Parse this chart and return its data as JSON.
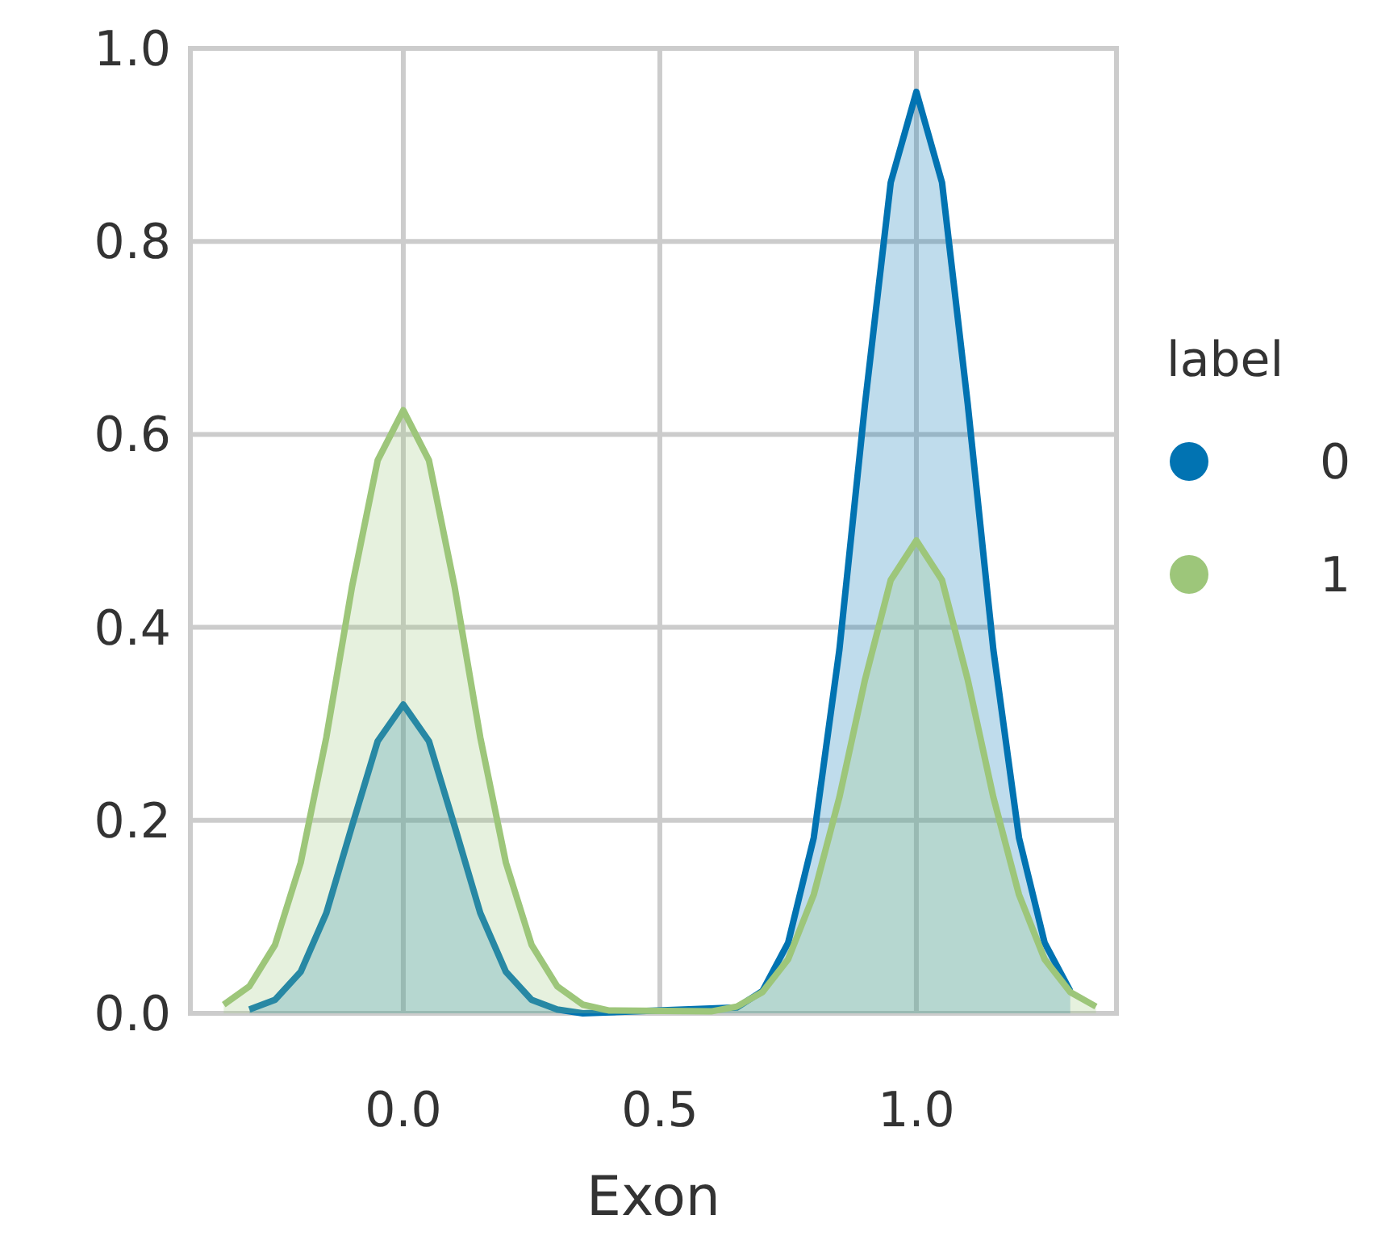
{
  "chart_data": {
    "type": "area",
    "xlabel": "Exon",
    "legend_title": "label",
    "xlim": [
      -0.415,
      1.39
    ],
    "xticks": [
      {
        "value": 0,
        "label": "0.0"
      },
      0.5,
      {
        "value": 1,
        "label": "1.0"
      }
    ],
    "ylim": [
      0,
      1
    ],
    "yticks": [
      {
        "value": 0,
        "label": "0.0"
      },
      0.2,
      0.4,
      0.6,
      0.8,
      {
        "value": 1,
        "label": "1.0"
      }
    ],
    "grid": true,
    "legend": "right",
    "line_style": "solid",
    "marker": "none",
    "series": [
      {
        "name": "0",
        "color": "#0173b2",
        "x": [
          -0.3,
          -0.25,
          -0.2,
          -0.15,
          -0.1,
          -0.05,
          0,
          0.05,
          0.1,
          0.15,
          0.2,
          0.25,
          0.3,
          0.35,
          0.65,
          0.7,
          0.75,
          0.8,
          0.85,
          0.9,
          0.95,
          1,
          1.05,
          1.1,
          1.15,
          1.2,
          1.25,
          1.3
        ],
        "values": [
          0.004,
          0.014,
          0.043,
          0.104,
          0.194,
          0.282,
          0.32,
          0.282,
          0.194,
          0.104,
          0.043,
          0.014,
          0.004,
          0,
          0.006,
          0.023,
          0.073,
          0.182,
          0.377,
          0.632,
          0.861,
          0.955,
          0.861,
          0.632,
          0.377,
          0.182,
          0.073,
          0.023
        ]
      },
      {
        "name": "1",
        "color": "#9dc67a",
        "x": [
          -0.35,
          -0.3,
          -0.25,
          -0.2,
          -0.15,
          -0.1,
          -0.05,
          0,
          0.05,
          0.1,
          0.15,
          0.2,
          0.25,
          0.3,
          0.35,
          0.4,
          0.6,
          0.65,
          0.7,
          0.75,
          0.8,
          0.85,
          0.9,
          0.95,
          1,
          1.05,
          1.1,
          1.15,
          1.2,
          1.25,
          1.3,
          1.35
        ],
        "values": [
          0.009,
          0.028,
          0.071,
          0.156,
          0.286,
          0.442,
          0.573,
          0.625,
          0.573,
          0.442,
          0.286,
          0.156,
          0.071,
          0.028,
          0.009,
          0.003,
          0.002,
          0.007,
          0.022,
          0.056,
          0.123,
          0.224,
          0.346,
          0.449,
          0.49,
          0.449,
          0.346,
          0.224,
          0.123,
          0.056,
          0.022,
          0.007
        ]
      }
    ]
  }
}
